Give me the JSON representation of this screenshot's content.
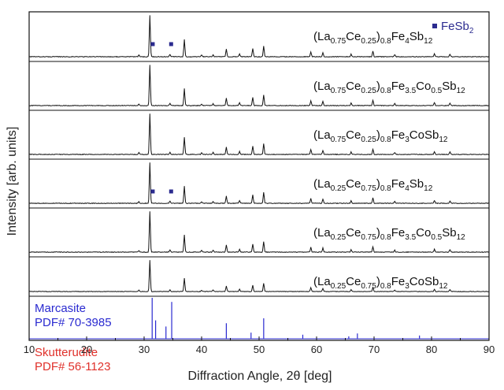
{
  "chart_data": {
    "type": "line",
    "xlabel": "Diffraction Angle, 2θ [deg]",
    "ylabel": "Intensity [arb. units]",
    "xlim": [
      10,
      90
    ],
    "x_ticks": [
      10,
      20,
      30,
      40,
      50,
      60,
      70,
      80,
      90
    ],
    "legend": {
      "marker": "■",
      "label": "FeSb",
      "sub": "2",
      "color": "#2b2b8f"
    },
    "peaks": [
      {
        "x": 31.0,
        "h": 1.0
      },
      {
        "x": 37.0,
        "h": 0.42
      },
      {
        "x": 44.3,
        "h": 0.18
      },
      {
        "x": 48.9,
        "h": 0.2
      },
      {
        "x": 50.8,
        "h": 0.26
      },
      {
        "x": 34.5,
        "h": 0.06
      },
      {
        "x": 29.1,
        "h": 0.04
      },
      {
        "x": 40.0,
        "h": 0.04
      },
      {
        "x": 42.0,
        "h": 0.05
      },
      {
        "x": 46.6,
        "h": 0.07
      },
      {
        "x": 59.0,
        "h": 0.12
      },
      {
        "x": 61.1,
        "h": 0.1
      },
      {
        "x": 66.0,
        "h": 0.06
      },
      {
        "x": 69.8,
        "h": 0.13
      },
      {
        "x": 73.6,
        "h": 0.05
      },
      {
        "x": 80.5,
        "h": 0.07
      },
      {
        "x": 83.2,
        "h": 0.06
      }
    ],
    "series": [
      {
        "parts": [
          {
            "t": "(La",
            "s": ""
          },
          {
            "t": "0.75",
            "s": "sub"
          },
          {
            "t": "Ce",
            "s": ""
          },
          {
            "t": "0.25",
            "s": "sub"
          },
          {
            "t": ")",
            "s": ""
          },
          {
            "t": "0.8",
            "s": "sub"
          },
          {
            "t": "Fe",
            "s": ""
          },
          {
            "t": "4",
            "s": "sub"
          },
          {
            "t": "Sb",
            "s": ""
          },
          {
            "t": "12",
            "s": "sub"
          }
        ],
        "fesb2_markers": [
          31.5,
          34.7
        ]
      },
      {
        "parts": [
          {
            "t": "(La",
            "s": ""
          },
          {
            "t": "0.75",
            "s": "sub"
          },
          {
            "t": "Ce",
            "s": ""
          },
          {
            "t": "0.25",
            "s": "sub"
          },
          {
            "t": ")",
            "s": ""
          },
          {
            "t": "0.8",
            "s": "sub"
          },
          {
            "t": "Fe",
            "s": ""
          },
          {
            "t": "3.5",
            "s": "sub"
          },
          {
            "t": "Co",
            "s": ""
          },
          {
            "t": "0.5",
            "s": "sub"
          },
          {
            "t": "Sb",
            "s": ""
          },
          {
            "t": "12",
            "s": "sub"
          }
        ],
        "fesb2_markers": []
      },
      {
        "parts": [
          {
            "t": "(La",
            "s": ""
          },
          {
            "t": "0.75",
            "s": "sub"
          },
          {
            "t": "Ce",
            "s": ""
          },
          {
            "t": "0.25",
            "s": "sub"
          },
          {
            "t": ")",
            "s": ""
          },
          {
            "t": "0.8",
            "s": "sub"
          },
          {
            "t": "Fe",
            "s": ""
          },
          {
            "t": "3",
            "s": "sub"
          },
          {
            "t": "CoSb",
            "s": ""
          },
          {
            "t": "12",
            "s": "sub"
          }
        ],
        "fesb2_markers": []
      },
      {
        "parts": [
          {
            "t": "(La",
            "s": ""
          },
          {
            "t": "0.25",
            "s": "sub"
          },
          {
            "t": "Ce",
            "s": ""
          },
          {
            "t": "0.75",
            "s": "sub"
          },
          {
            "t": ")",
            "s": ""
          },
          {
            "t": "0.8",
            "s": "sub"
          },
          {
            "t": "Fe",
            "s": ""
          },
          {
            "t": "4",
            "s": "sub"
          },
          {
            "t": "Sb",
            "s": ""
          },
          {
            "t": "12",
            "s": "sub"
          }
        ],
        "fesb2_markers": [
          31.5,
          34.7
        ]
      },
      {
        "parts": [
          {
            "t": "(La",
            "s": ""
          },
          {
            "t": "0.25",
            "s": "sub"
          },
          {
            "t": "Ce",
            "s": ""
          },
          {
            "t": "0.75",
            "s": "sub"
          },
          {
            "t": ")",
            "s": ""
          },
          {
            "t": "0.8",
            "s": "sub"
          },
          {
            "t": "Fe",
            "s": ""
          },
          {
            "t": "3.5",
            "s": "sub"
          },
          {
            "t": "Co",
            "s": ""
          },
          {
            "t": "0.5",
            "s": "sub"
          },
          {
            "t": "Sb",
            "s": ""
          },
          {
            "t": "12",
            "s": "sub"
          }
        ],
        "fesb2_markers": []
      },
      {
        "parts": [
          {
            "t": "(La",
            "s": ""
          },
          {
            "t": "0.25",
            "s": "sub"
          },
          {
            "t": "Ce",
            "s": ""
          },
          {
            "t": "0.75",
            "s": "sub"
          },
          {
            "t": ")",
            "s": ""
          },
          {
            "t": "0.8",
            "s": "sub"
          },
          {
            "t": "Fe",
            "s": ""
          },
          {
            "t": "3",
            "s": "sub"
          },
          {
            "t": "CoSb",
            "s": ""
          },
          {
            "t": "12",
            "s": "sub"
          }
        ],
        "fesb2_markers": []
      }
    ],
    "references": [
      {
        "name": "Marcasite",
        "pdf": "PDF# 70-3985",
        "color": "#2a2ad0",
        "lines": [
          [
            31.4,
            1.0
          ],
          [
            32.0,
            0.45
          ],
          [
            33.8,
            0.3
          ],
          [
            34.8,
            0.9
          ],
          [
            44.3,
            0.38
          ],
          [
            48.6,
            0.15
          ],
          [
            50.8,
            0.5
          ],
          [
            57.6,
            0.1
          ],
          [
            65.6,
            0.06
          ],
          [
            67.1,
            0.13
          ],
          [
            77.9,
            0.08
          ]
        ]
      },
      {
        "name": "Skutterudite",
        "pdf": "PDF# 56-1123",
        "color": "#e0302a",
        "lines": [
          [
            31.0,
            1.0
          ],
          [
            34.0,
            0.15
          ],
          [
            37.0,
            0.45
          ],
          [
            39.6,
            0.13
          ],
          [
            42.0,
            0.25
          ],
          [
            44.3,
            0.3
          ],
          [
            46.6,
            0.17
          ],
          [
            48.9,
            0.28
          ],
          [
            50.8,
            0.3
          ],
          [
            59.0,
            0.3
          ],
          [
            61.1,
            0.3
          ],
          [
            62.5,
            0.2
          ],
          [
            64.3,
            0.16
          ],
          [
            68.4,
            0.14
          ],
          [
            69.8,
            0.3
          ]
        ]
      }
    ]
  }
}
